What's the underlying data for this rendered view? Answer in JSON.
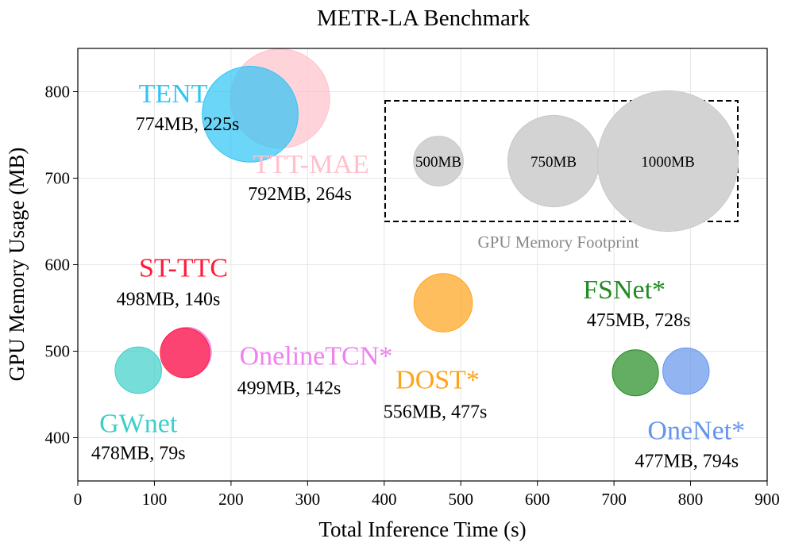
{
  "chart_data": {
    "type": "scatter",
    "title": "METR-LA Benchmark",
    "xlabel": "Total Inference Time (s)",
    "ylabel": "GPU Memory Usage (MB)",
    "xlim": [
      0,
      900
    ],
    "ylim": [
      350,
      850
    ],
    "xticks": [
      0,
      100,
      200,
      300,
      400,
      500,
      600,
      700,
      800,
      900
    ],
    "yticks": [
      400,
      500,
      600,
      700,
      800
    ],
    "grid": true,
    "points": [
      {
        "name": "TTT-MAE",
        "label": "TTT-MAE",
        "annotation": "792MB, 264s",
        "x": 264,
        "y": 792,
        "memory": 792,
        "color": "#ffc0cb"
      },
      {
        "name": "TENT",
        "label": "TENT",
        "annotation": "774MB, 225s",
        "x": 225,
        "y": 774,
        "memory": 774,
        "color": "#2ec5f5"
      },
      {
        "name": "OnelineTCN*",
        "label": "OnelineTCN*",
        "annotation": "499MB, 142s",
        "x": 142,
        "y": 499,
        "memory": 499,
        "color": "#ee82ee"
      },
      {
        "name": "GWnet",
        "label": "GWnet",
        "annotation": "478MB, 79s",
        "x": 79,
        "y": 478,
        "memory": 478,
        "color": "#3dcfc8"
      },
      {
        "name": "ST-TTC",
        "label": "ST-TTC",
        "annotation": "498MB, 140s",
        "x": 140,
        "y": 498,
        "memory": 498,
        "color": "#ff1a3a"
      },
      {
        "name": "DOST*",
        "label": "DOST*",
        "annotation": "556MB, 477s",
        "x": 477,
        "y": 556,
        "memory": 556,
        "color": "#ffa31a"
      },
      {
        "name": "OneNet*",
        "label": "OneNet*",
        "annotation": "477MB, 794s",
        "x": 794,
        "y": 477,
        "memory": 477,
        "color": "#6495ed"
      },
      {
        "name": "FSNet*",
        "label": "FSNet*",
        "annotation": "475MB, 728s",
        "x": 728,
        "y": 475,
        "memory": 475,
        "color": "#228b22"
      }
    ],
    "legend": {
      "title": "GPU Memory Footprint",
      "entries": [
        {
          "label": "500MB",
          "value": 500
        },
        {
          "label": "750MB",
          "value": 750
        },
        {
          "label": "1000MB",
          "value": 1000
        }
      ]
    }
  }
}
